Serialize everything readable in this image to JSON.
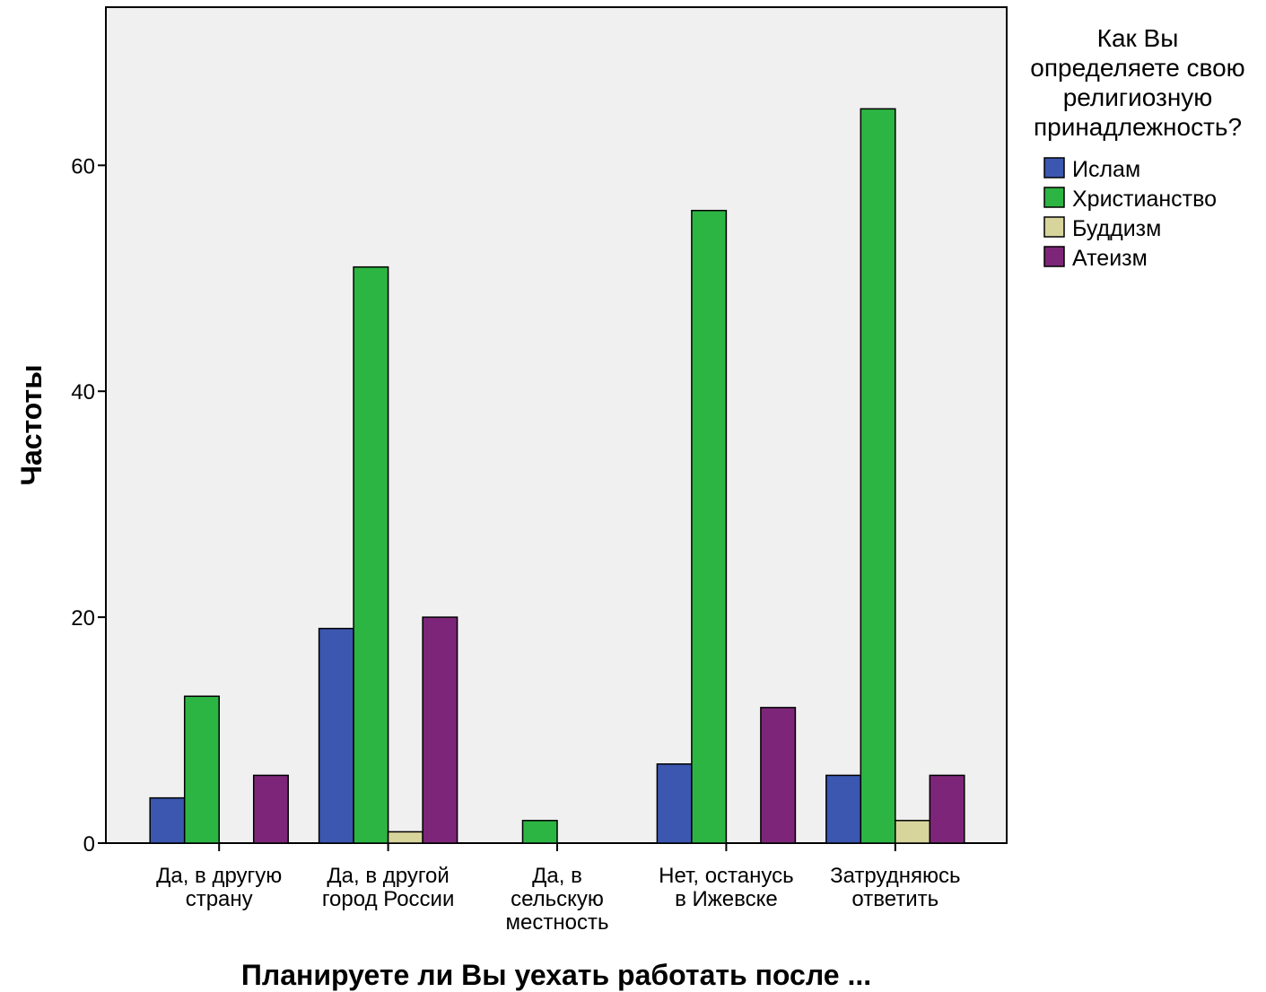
{
  "chart_data": {
    "type": "bar",
    "title": "",
    "xlabel": "Планируете ли Вы уехать работать после ...",
    "ylabel": "Частоты",
    "ylim": [
      0,
      74
    ],
    "yticks": [
      0,
      20,
      40,
      60
    ],
    "grid": false,
    "legend": {
      "title": "Как Вы определяете свою религиозную принадлежность?",
      "title_lines": [
        "Как Вы",
        "определяете свою",
        "религиозную",
        "принадлежность?"
      ],
      "placement": "right"
    },
    "categories": [
      "Да, в другую страну",
      "Да, в другой город России",
      "Да, в сельскую местность",
      "Нет, останусь в Ижевске",
      "Затрудняюсь ответить"
    ],
    "category_lines": [
      [
        "Да, в другую",
        "страну"
      ],
      [
        "Да, в другой",
        "город России"
      ],
      [
        "Да, в",
        "сельскую",
        "местность"
      ],
      [
        "Нет, останусь",
        "в Ижевске"
      ],
      [
        "Затрудняюсь",
        "ответить"
      ]
    ],
    "series": [
      {
        "name": "Ислам",
        "color": "#3b57b0",
        "values": [
          4,
          19,
          0,
          7,
          6
        ]
      },
      {
        "name": "Христианство",
        "color": "#2db543",
        "values": [
          13,
          51,
          2,
          56,
          65
        ]
      },
      {
        "name": "Буддизм",
        "color": "#d8d59c",
        "values": [
          0,
          1,
          0,
          0,
          2
        ]
      },
      {
        "name": "Атеизм",
        "color": "#7d2679",
        "values": [
          6,
          20,
          0,
          12,
          6
        ]
      }
    ]
  }
}
